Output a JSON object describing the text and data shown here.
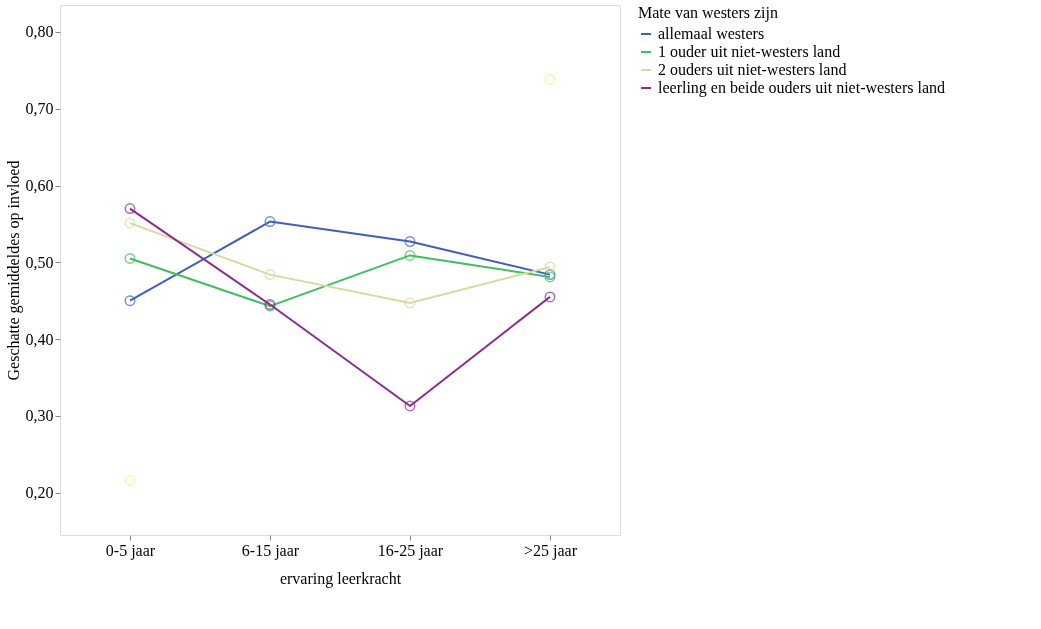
{
  "chart_data": {
    "type": "line",
    "xlabel": "ervaring leerkracht",
    "ylabel": "Geschatte gemiddeldes op invloed",
    "legend_title": "Mate van westers zijn",
    "legend": "right",
    "marker": "circle",
    "line_style": "solid",
    "grid": false,
    "categories": [
      "0-5 jaar",
      "6-15 jaar",
      "16-25 jaar",
      ">25 jaar"
    ],
    "ylim": [
      0.145,
      0.835
    ],
    "yticks": [
      {
        "value": 0.2,
        "label": "0,20"
      },
      {
        "value": 0.3,
        "label": "0,30"
      },
      {
        "value": 0.4,
        "label": "0,40"
      },
      {
        "value": 0.5,
        "label": "0,50"
      },
      {
        "value": 0.6,
        "label": "0,60"
      },
      {
        "value": 0.7,
        "label": "0,70"
      },
      {
        "value": 0.8,
        "label": "0,80"
      }
    ],
    "series": [
      {
        "name": "allemaal westers",
        "color": "#3f5fbf",
        "values": [
          0.45,
          0.553,
          0.527,
          0.484
        ]
      },
      {
        "name": "1 ouder uit niet-westers land",
        "color": "#3fbf5f",
        "values": [
          0.505,
          0.443,
          0.509,
          0.481
        ]
      },
      {
        "name": "2 ouders uit niet-westers land",
        "color": "#dcd8a0",
        "values": [
          0.551,
          0.484,
          0.447,
          0.494
        ]
      },
      {
        "name": "leerling en beide ouders uit niet-westers land",
        "color": "#8b2d8e",
        "values": [
          0.57,
          0.445,
          0.313,
          0.455
        ]
      },
      {
        "type": "scatter",
        "color": "#f5f07a",
        "values": [
          0.216,
          null,
          null,
          0.738
        ]
      }
    ]
  }
}
